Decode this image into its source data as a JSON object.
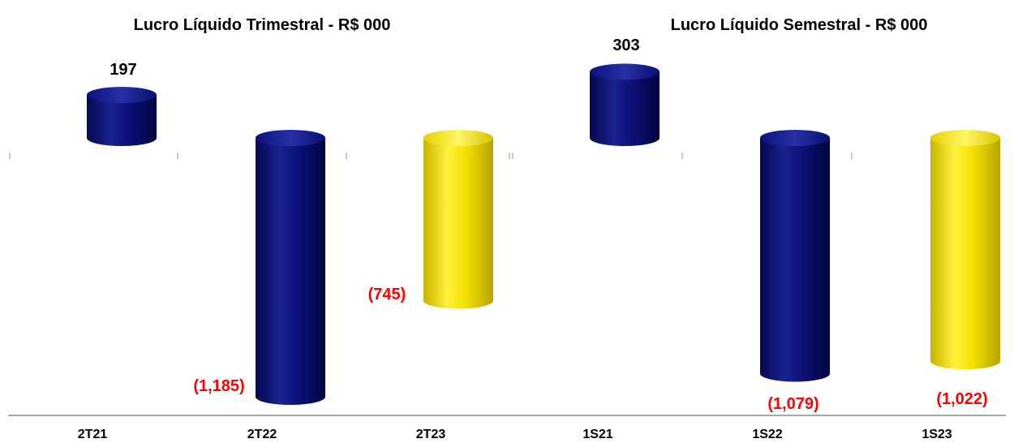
{
  "chart_data": [
    {
      "type": "bar",
      "title": "Lucro Líquido Trimestral - R$ 000",
      "categories": [
        "2T21",
        "2T22",
        "2T23"
      ],
      "values": [
        197,
        -1185,
        -745
      ],
      "data_labels": [
        "197",
        "(1,185)",
        "(745)"
      ],
      "bar_colors": [
        "#0a0f73",
        "#0a0f73",
        "#f5e100"
      ],
      "label_colors": [
        "#000000",
        "#ff0000",
        "#ff0000"
      ],
      "shape": "cylinder"
    },
    {
      "type": "bar",
      "title": "Lucro Líquido Semestral - R$ 000",
      "categories": [
        "1S21",
        "1S22",
        "1S23"
      ],
      "values": [
        303,
        -1079,
        -1022
      ],
      "data_labels": [
        "303",
        "(1,079)",
        "(1,022)"
      ],
      "bar_colors": [
        "#0a0f73",
        "#0a0f73",
        "#f5e100"
      ],
      "label_colors": [
        "#000000",
        "#ff0000",
        "#ff0000"
      ],
      "shape": "cylinder"
    }
  ]
}
